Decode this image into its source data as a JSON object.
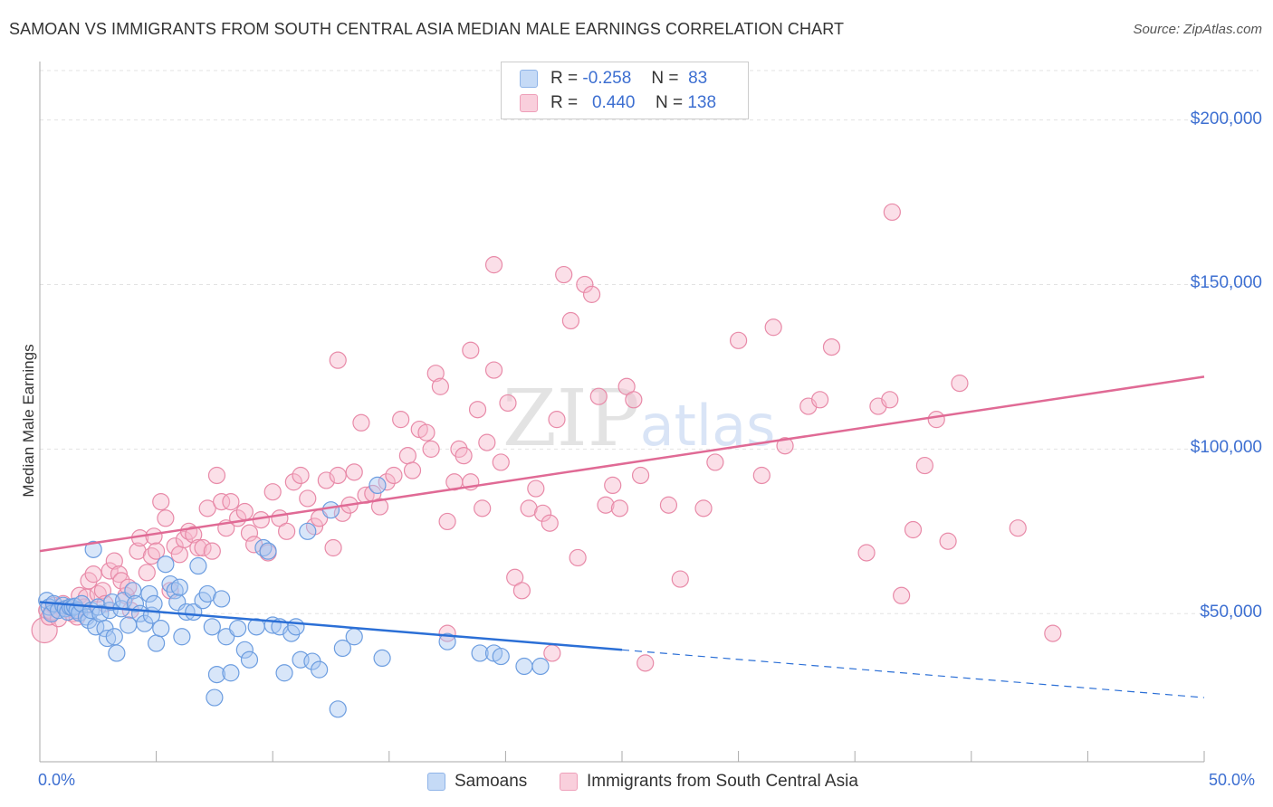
{
  "title": "SAMOAN VS IMMIGRANTS FROM SOUTH CENTRAL ASIA MEDIAN MALE EARNINGS CORRELATION CHART",
  "source": "Source: ZipAtlas.com",
  "watermark": "ZIPatlas",
  "legend": {
    "r_label": "R =",
    "n_label": "N =",
    "rows": [
      {
        "r": "-0.258",
        "n": "83",
        "color": "#a9c8f2"
      },
      {
        "r": "0.440",
        "n": "138",
        "color": "#f6b8cc"
      }
    ]
  },
  "bottom_legend": [
    {
      "label": "Samoans",
      "color": "#a9c8f2"
    },
    {
      "label": "Immigrants from South Central Asia",
      "color": "#f6b8cc"
    }
  ],
  "chart_data": {
    "type": "scatter",
    "xlabel": "",
    "ylabel": "Median Male Earnings",
    "xlim": [
      0,
      50
    ],
    "ylim": [
      5000,
      215000
    ],
    "x_tick_labels": [
      "0.0%",
      "50.0%"
    ],
    "y_ticks": [
      {
        "value": 50000,
        "label": "$50,000"
      },
      {
        "value": 100000,
        "label": "$100,000"
      },
      {
        "value": 150000,
        "label": "$150,000"
      },
      {
        "value": 200000,
        "label": "$200,000"
      }
    ],
    "series": [
      {
        "name": "Samoans",
        "color": "#6c9de0",
        "fill": "#a9c8f2",
        "trend": {
          "x0": 0,
          "y0": 53500,
          "x1": 25,
          "y1": 39000,
          "x_dash_end": 50,
          "y_dash_end": 24500,
          "color": "#2b6fd6"
        },
        "points": [
          [
            0.3,
            54000
          ],
          [
            0.4,
            52000
          ],
          [
            0.5,
            50000
          ],
          [
            0.6,
            53000
          ],
          [
            0.8,
            51000
          ],
          [
            1.0,
            52500
          ],
          [
            1.1,
            51500
          ],
          [
            1.2,
            50500
          ],
          [
            1.3,
            52000
          ],
          [
            1.4,
            51800
          ],
          [
            1.5,
            52200
          ],
          [
            1.6,
            51000
          ],
          [
            1.7,
            50200
          ],
          [
            1.8,
            53000
          ],
          [
            2.0,
            49000
          ],
          [
            2.1,
            48000
          ],
          [
            2.2,
            51000
          ],
          [
            2.4,
            46000
          ],
          [
            2.5,
            52000
          ],
          [
            2.6,
            50000
          ],
          [
            2.8,
            45500
          ],
          [
            2.9,
            42500
          ],
          [
            3.0,
            51000
          ],
          [
            3.1,
            53500
          ],
          [
            3.2,
            43000
          ],
          [
            3.3,
            38000
          ],
          [
            3.5,
            51500
          ],
          [
            3.6,
            54000
          ],
          [
            3.8,
            46500
          ],
          [
            4.0,
            57000
          ],
          [
            4.1,
            53000
          ],
          [
            4.3,
            50000
          ],
          [
            4.5,
            47000
          ],
          [
            4.7,
            56000
          ],
          [
            4.8,
            49500
          ],
          [
            4.9,
            53000
          ],
          [
            5.0,
            41000
          ],
          [
            5.2,
            45500
          ],
          [
            5.4,
            65000
          ],
          [
            5.6,
            59000
          ],
          [
            5.8,
            57000
          ],
          [
            5.9,
            53500
          ],
          [
            6.0,
            58000
          ],
          [
            6.1,
            43000
          ],
          [
            6.3,
            50500
          ],
          [
            6.6,
            50500
          ],
          [
            6.8,
            64500
          ],
          [
            7.0,
            54000
          ],
          [
            7.2,
            56000
          ],
          [
            7.4,
            46000
          ],
          [
            7.5,
            24500
          ],
          [
            7.6,
            31500
          ],
          [
            7.8,
            54500
          ],
          [
            8.0,
            43000
          ],
          [
            8.2,
            32000
          ],
          [
            8.5,
            45500
          ],
          [
            8.8,
            39000
          ],
          [
            9.0,
            36000
          ],
          [
            9.3,
            46000
          ],
          [
            9.6,
            70000
          ],
          [
            9.8,
            69000
          ],
          [
            10.0,
            46500
          ],
          [
            10.3,
            46000
          ],
          [
            10.5,
            32000
          ],
          [
            10.8,
            44000
          ],
          [
            11.0,
            46000
          ],
          [
            11.2,
            36000
          ],
          [
            11.5,
            75000
          ],
          [
            11.7,
            35500
          ],
          [
            12.0,
            33000
          ],
          [
            12.5,
            81500
          ],
          [
            12.8,
            21000
          ],
          [
            13.0,
            39500
          ],
          [
            13.5,
            43000
          ],
          [
            14.5,
            89000
          ],
          [
            14.7,
            36500
          ],
          [
            17.5,
            41500
          ],
          [
            18.9,
            38000
          ],
          [
            19.5,
            38000
          ],
          [
            19.8,
            37000
          ],
          [
            20.8,
            34000
          ],
          [
            21.5,
            34000
          ],
          [
            2.3,
            69500
          ]
        ]
      },
      {
        "name": "Immigrants from South Central Asia",
        "color": "#e88aa8",
        "fill": "#f6b8cc",
        "trend": {
          "x0": 0,
          "y0": 69000,
          "x1": 50,
          "y1": 122000,
          "color": "#e06a95"
        },
        "points": [
          [
            0.2,
            45000
          ],
          [
            0.3,
            51000
          ],
          [
            0.4,
            49000
          ],
          [
            0.5,
            50500
          ],
          [
            0.6,
            52500
          ],
          [
            0.8,
            48500
          ],
          [
            1.0,
            53000
          ],
          [
            1.2,
            51500
          ],
          [
            1.4,
            50000
          ],
          [
            1.5,
            51000
          ],
          [
            1.6,
            49000
          ],
          [
            1.7,
            55500
          ],
          [
            1.9,
            52000
          ],
          [
            2.0,
            55000
          ],
          [
            2.1,
            60000
          ],
          [
            2.3,
            62000
          ],
          [
            2.5,
            56000
          ],
          [
            2.7,
            57000
          ],
          [
            2.8,
            53000
          ],
          [
            3.0,
            63000
          ],
          [
            3.2,
            66000
          ],
          [
            3.4,
            62000
          ],
          [
            3.5,
            60000
          ],
          [
            3.7,
            55500
          ],
          [
            3.8,
            58000
          ],
          [
            3.9,
            51000
          ],
          [
            4.2,
            69000
          ],
          [
            4.3,
            73000
          ],
          [
            4.6,
            62500
          ],
          [
            4.8,
            67500
          ],
          [
            4.9,
            73500
          ],
          [
            5.0,
            69000
          ],
          [
            5.2,
            84000
          ],
          [
            5.4,
            79000
          ],
          [
            5.6,
            57000
          ],
          [
            5.8,
            70500
          ],
          [
            6.0,
            68000
          ],
          [
            6.2,
            72500
          ],
          [
            6.4,
            75000
          ],
          [
            6.6,
            74000
          ],
          [
            6.8,
            70000
          ],
          [
            7.0,
            70000
          ],
          [
            7.2,
            82000
          ],
          [
            7.4,
            69000
          ],
          [
            7.6,
            92000
          ],
          [
            7.8,
            84000
          ],
          [
            8.0,
            76000
          ],
          [
            8.2,
            84000
          ],
          [
            8.5,
            79000
          ],
          [
            8.8,
            81000
          ],
          [
            9.0,
            74500
          ],
          [
            9.2,
            71000
          ],
          [
            9.5,
            78500
          ],
          [
            9.8,
            68500
          ],
          [
            10.0,
            87000
          ],
          [
            10.3,
            79000
          ],
          [
            10.6,
            75000
          ],
          [
            10.9,
            90000
          ],
          [
            11.2,
            92000
          ],
          [
            11.5,
            85000
          ],
          [
            11.8,
            76500
          ],
          [
            12.0,
            79000
          ],
          [
            12.3,
            90500
          ],
          [
            12.6,
            70000
          ],
          [
            12.8,
            92000
          ],
          [
            13.0,
            80500
          ],
          [
            13.3,
            83000
          ],
          [
            13.5,
            93000
          ],
          [
            13.8,
            108000
          ],
          [
            14.0,
            86000
          ],
          [
            14.3,
            86500
          ],
          [
            14.6,
            82500
          ],
          [
            14.9,
            90000
          ],
          [
            15.2,
            92000
          ],
          [
            15.5,
            109000
          ],
          [
            15.8,
            98000
          ],
          [
            16.0,
            93500
          ],
          [
            16.3,
            106000
          ],
          [
            16.6,
            105000
          ],
          [
            16.8,
            100000
          ],
          [
            17.0,
            123000
          ],
          [
            17.2,
            119000
          ],
          [
            17.5,
            78000
          ],
          [
            17.8,
            90000
          ],
          [
            18.0,
            100000
          ],
          [
            18.2,
            98000
          ],
          [
            18.5,
            90000
          ],
          [
            18.8,
            112000
          ],
          [
            19.0,
            82000
          ],
          [
            19.2,
            102000
          ],
          [
            19.5,
            124000
          ],
          [
            19.8,
            96000
          ],
          [
            20.1,
            114000
          ],
          [
            20.4,
            61000
          ],
          [
            20.7,
            57000
          ],
          [
            21.0,
            82000
          ],
          [
            21.3,
            88000
          ],
          [
            21.6,
            80500
          ],
          [
            21.9,
            77500
          ],
          [
            22.2,
            109000
          ],
          [
            22.5,
            153000
          ],
          [
            22.8,
            139000
          ],
          [
            23.1,
            67000
          ],
          [
            23.4,
            150000
          ],
          [
            23.7,
            147000
          ],
          [
            24.0,
            116000
          ],
          [
            24.3,
            83000
          ],
          [
            24.6,
            89000
          ],
          [
            24.9,
            82000
          ],
          [
            25.2,
            119000
          ],
          [
            25.5,
            115000
          ],
          [
            25.8,
            92000
          ],
          [
            26.0,
            35000
          ],
          [
            27.0,
            83000
          ],
          [
            27.5,
            60500
          ],
          [
            28.5,
            82000
          ],
          [
            29.0,
            96000
          ],
          [
            30.0,
            133000
          ],
          [
            31.0,
            92000
          ],
          [
            31.5,
            137000
          ],
          [
            32.0,
            101000
          ],
          [
            33.0,
            113000
          ],
          [
            33.5,
            115000
          ],
          [
            34.0,
            131000
          ],
          [
            35.5,
            68500
          ],
          [
            36.0,
            113000
          ],
          [
            36.5,
            115000
          ],
          [
            36.6,
            172000
          ],
          [
            37.0,
            55500
          ],
          [
            37.5,
            75500
          ],
          [
            38.0,
            95000
          ],
          [
            38.5,
            109000
          ],
          [
            39.0,
            72000
          ],
          [
            39.5,
            120000
          ],
          [
            42.0,
            76000
          ],
          [
            43.5,
            44000
          ],
          [
            19.5,
            156000
          ],
          [
            12.8,
            127000
          ],
          [
            18.5,
            130000
          ],
          [
            17.5,
            44000
          ],
          [
            22.0,
            38000
          ]
        ]
      }
    ]
  }
}
